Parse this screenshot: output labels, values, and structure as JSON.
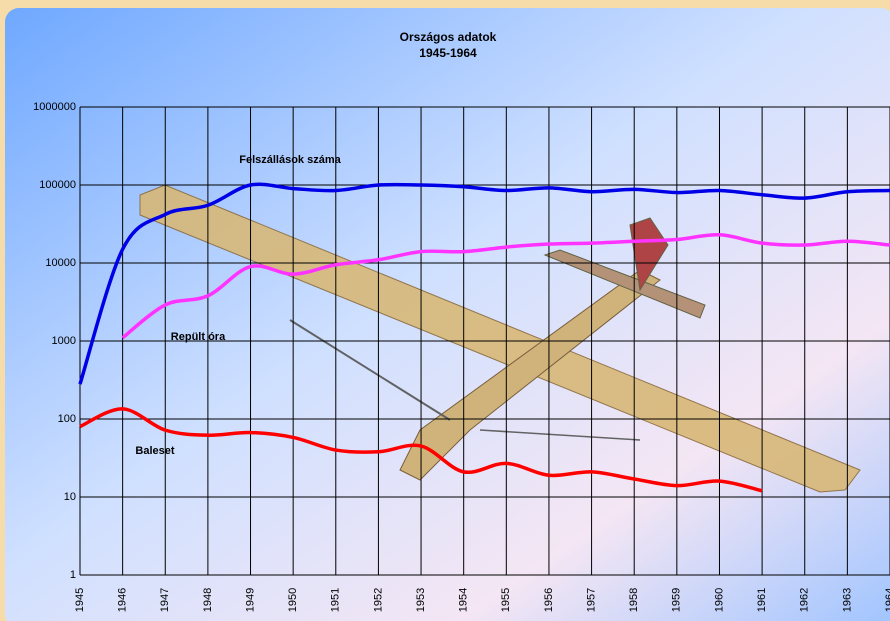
{
  "chart_data": {
    "type": "line",
    "title": "Országos adatok",
    "subtitle": "1945-1964",
    "log_y": true,
    "grid": true,
    "x": [
      1945,
      1946,
      1947,
      1948,
      1949,
      1950,
      1951,
      1952,
      1953,
      1954,
      1955,
      1956,
      1957,
      1958,
      1959,
      1960,
      1961,
      1962,
      1963,
      1964
    ],
    "xlim": [
      1945,
      1964
    ],
    "xticks": [
      1945,
      1946,
      1947,
      1948,
      1949,
      1950,
      1951,
      1952,
      1953,
      1954,
      1955,
      1956,
      1957,
      1958,
      1959,
      1960,
      1961,
      1962,
      1963,
      1964
    ],
    "ylim": [
      1,
      1000000
    ],
    "yticks": [
      1,
      10,
      100,
      1000,
      10000,
      100000,
      1000000
    ],
    "series": [
      {
        "name": "Felszállások száma",
        "color": "#0000e6",
        "values": [
          280,
          15000,
          42000,
          55000,
          100000,
          90000,
          85000,
          100000,
          100000,
          95000,
          85000,
          92000,
          82000,
          88000,
          80000,
          85000,
          75000,
          68000,
          82000,
          85000
        ]
      },
      {
        "name": "Repült óra",
        "color": "#ff33ff",
        "values": [
          null,
          1100,
          2900,
          3800,
          9000,
          7200,
          9500,
          11000,
          14000,
          14000,
          16000,
          17500,
          18000,
          19000,
          20000,
          23000,
          18000,
          17000,
          19000,
          17000
        ]
      },
      {
        "name": "Baleset",
        "color": "#ff0000",
        "values": [
          80,
          135,
          72,
          62,
          67,
          58,
          40,
          38,
          45,
          21,
          27,
          19,
          21,
          17,
          14,
          16,
          12,
          null,
          null,
          null
        ]
      }
    ]
  }
}
